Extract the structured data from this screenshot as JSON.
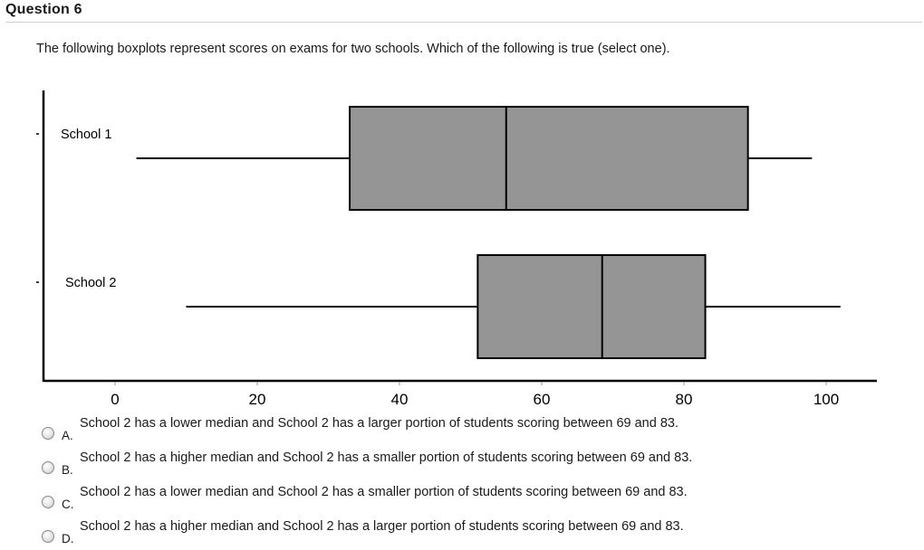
{
  "question": {
    "title": "Question 6",
    "prompt": "The following boxplots represent scores on exams for two schools. Which of the following is true (select one)."
  },
  "chart_data": {
    "type": "boxplot",
    "orientation": "horizontal",
    "series": [
      {
        "name": "School 1",
        "min": 3,
        "q1": 33,
        "median": 55,
        "q3": 89,
        "max": 98
      },
      {
        "name": "School 2",
        "min": 10,
        "q1": 51,
        "median": 68.5,
        "q3": 83,
        "max": 102
      }
    ],
    "xticks": [
      0,
      20,
      40,
      60,
      80,
      100
    ],
    "xlim": [
      -10,
      107
    ],
    "box_color": "#959595",
    "line_color": "#000000",
    "grid": false
  },
  "answers": [
    {
      "letter": "A.",
      "text": "School 2 has a lower median and School 2 has a larger portion of students scoring between 69 and 83."
    },
    {
      "letter": "B.",
      "text": "School 2 has a higher median and School 2 has a smaller portion of students scoring between 69 and 83."
    },
    {
      "letter": "C.",
      "text": "School 2 has a lower median and School 2 has a smaller portion of students scoring between 69 and 83."
    },
    {
      "letter": "D.",
      "text": "School 2 has a higher median and School 2 has a larger portion of students scoring between 69 and 83."
    }
  ]
}
